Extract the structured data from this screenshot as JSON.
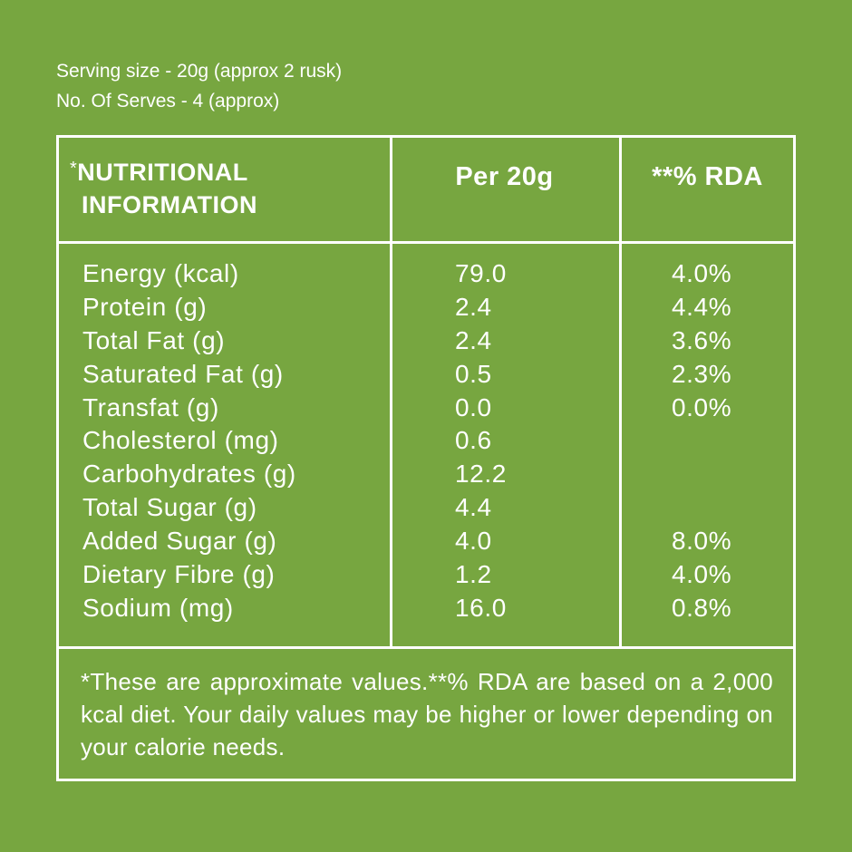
{
  "serving": {
    "size": "Serving size - 20g (approx 2 rusk)",
    "serves": "No. Of Serves - 4 (approx)"
  },
  "table": {
    "header": {
      "star": "*",
      "nutrition_line1": "NUTRITIONAL",
      "nutrition_line2": "INFORMATION",
      "per": "Per 20g",
      "rda": "**% RDA"
    },
    "rows": [
      {
        "name": "Energy (kcal)",
        "per": "79.0",
        "rda": "4.0%"
      },
      {
        "name": "Protein (g)",
        "per": "2.4",
        "rda": "4.4%"
      },
      {
        "name": "Total Fat (g)",
        "per": "2.4",
        "rda": "3.6%"
      },
      {
        "name": "Saturated Fat (g)",
        "per": "0.5",
        "rda": "2.3%"
      },
      {
        "name": "Transfat (g)",
        "per": "0.0",
        "rda": "0.0%"
      },
      {
        "name": "Cholesterol (mg)",
        "per": "0.6",
        "rda": ""
      },
      {
        "name": "Carbohydrates (g)",
        "per": "12.2",
        "rda": ""
      },
      {
        "name": "Total Sugar (g)",
        "per": "4.4",
        "rda": ""
      },
      {
        "name": "Added Sugar (g)",
        "per": "4.0",
        "rda": "8.0%"
      },
      {
        "name": "Dietary Fibre (g)",
        "per": "1.2",
        "rda": "4.0%"
      },
      {
        "name": "Sodium (mg)",
        "per": "16.0",
        "rda": "0.8%"
      }
    ],
    "footnote": "*These are approximate values.**% RDA are based on a 2,000 kcal diet. Your daily values may be higher or lower depending on your calorie needs."
  },
  "colors": {
    "background": "#77a640",
    "text": "#ffffff"
  }
}
